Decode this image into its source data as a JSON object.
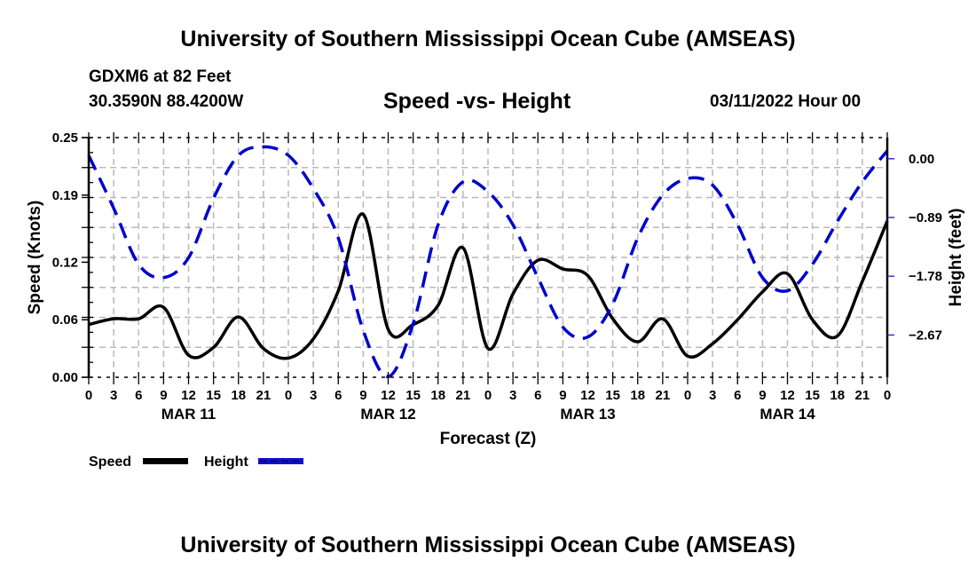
{
  "header": {
    "main_title": "University of Southern Mississippi Ocean Cube (AMSEAS)",
    "station": "GDXM6 at 82 Feet",
    "coords": "30.3590N  88.4200W",
    "chart_title": "Speed -vs- Height",
    "datetime": "03/11/2022 Hour 00"
  },
  "footer": {
    "title": "University of Southern Mississippi Ocean Cube (AMSEAS)"
  },
  "chart_data": {
    "type": "line",
    "title": "Speed -vs- Height",
    "xlabel": "Forecast (Z)",
    "ylabel": "Speed (Knots)",
    "y2label": "Height (feet)",
    "x_unit": "forecast hour",
    "xlim": [
      0,
      96
    ],
    "ylim": [
      0,
      0.25
    ],
    "y2lim": [
      -3.31,
      0.32
    ],
    "grid": true,
    "x_tick_values": [
      0,
      3,
      6,
      9,
      12,
      15,
      18,
      21,
      24,
      27,
      30,
      33,
      36,
      39,
      42,
      45,
      48,
      51,
      54,
      57,
      60,
      63,
      66,
      69,
      72,
      75,
      78,
      81,
      84,
      87,
      90,
      93,
      96
    ],
    "x_tick_labels": [
      "0",
      "3",
      "6",
      "9",
      "12",
      "15",
      "18",
      "21",
      "0",
      "3",
      "6",
      "9",
      "12",
      "15",
      "18",
      "21",
      "0",
      "3",
      "6",
      "9",
      "12",
      "15",
      "18",
      "21",
      "0",
      "3",
      "6",
      "9",
      "12",
      "15",
      "18",
      "21",
      "0"
    ],
    "day_labels": [
      {
        "label": "MAR 11",
        "hour": 12
      },
      {
        "label": "MAR 12",
        "hour": 36
      },
      {
        "label": "MAR 13",
        "hour": 60
      },
      {
        "label": "MAR 14",
        "hour": 84
      }
    ],
    "y_tick_values": [
      0.0,
      0.06,
      0.12,
      0.19,
      0.25
    ],
    "y_tick_labels": [
      "0.00",
      "0.06",
      "0.12",
      "0.19",
      "0.25"
    ],
    "y2_tick_values": [
      0.0,
      -0.89,
      -1.78,
      -2.67
    ],
    "y2_tick_labels": [
      "0.00",
      "−0.89",
      "−1.78",
      "−2.67"
    ],
    "legend": {
      "placement": "bottom-left",
      "entries": [
        {
          "name": "Speed",
          "style": "solid",
          "color": "#000000"
        },
        {
          "name": "Height",
          "style": "dashed",
          "color": "#0000cc"
        }
      ]
    },
    "series": [
      {
        "name": "Speed",
        "axis": "left",
        "color": "#000000",
        "style": "solid",
        "x": [
          0,
          3,
          6,
          9,
          12,
          15,
          18,
          21,
          24,
          27,
          30,
          33,
          36,
          39,
          42,
          45,
          48,
          51,
          54,
          57,
          60,
          63,
          66,
          69,
          72,
          75,
          78,
          81,
          84,
          87,
          90,
          93,
          96
        ],
        "values": [
          0.055,
          0.061,
          0.061,
          0.073,
          0.023,
          0.031,
          0.063,
          0.03,
          0.02,
          0.04,
          0.09,
          0.17,
          0.05,
          0.055,
          0.075,
          0.135,
          0.03,
          0.087,
          0.122,
          0.113,
          0.106,
          0.061,
          0.037,
          0.061,
          0.022,
          0.035,
          0.06,
          0.089,
          0.108,
          0.06,
          0.043,
          0.1,
          0.163
        ]
      },
      {
        "name": "Height",
        "axis": "right",
        "color": "#0000cc",
        "style": "dashed",
        "x": [
          0,
          3,
          6,
          9,
          12,
          15,
          18,
          21,
          24,
          27,
          30,
          33,
          36,
          39,
          42,
          45,
          48,
          51,
          54,
          57,
          60,
          63,
          66,
          69,
          72,
          75,
          78,
          81,
          84,
          87,
          90,
          93,
          96
        ],
        "values": [
          0.05,
          -0.75,
          -1.6,
          -1.8,
          -1.5,
          -0.6,
          0.05,
          0.18,
          0.05,
          -0.45,
          -1.2,
          -2.6,
          -3.3,
          -2.5,
          -1.0,
          -0.35,
          -0.5,
          -1.0,
          -1.8,
          -2.55,
          -2.7,
          -2.2,
          -1.2,
          -0.55,
          -0.3,
          -0.4,
          -1.0,
          -1.8,
          -2.0,
          -1.6,
          -0.95,
          -0.35,
          0.12
        ]
      }
    ]
  }
}
